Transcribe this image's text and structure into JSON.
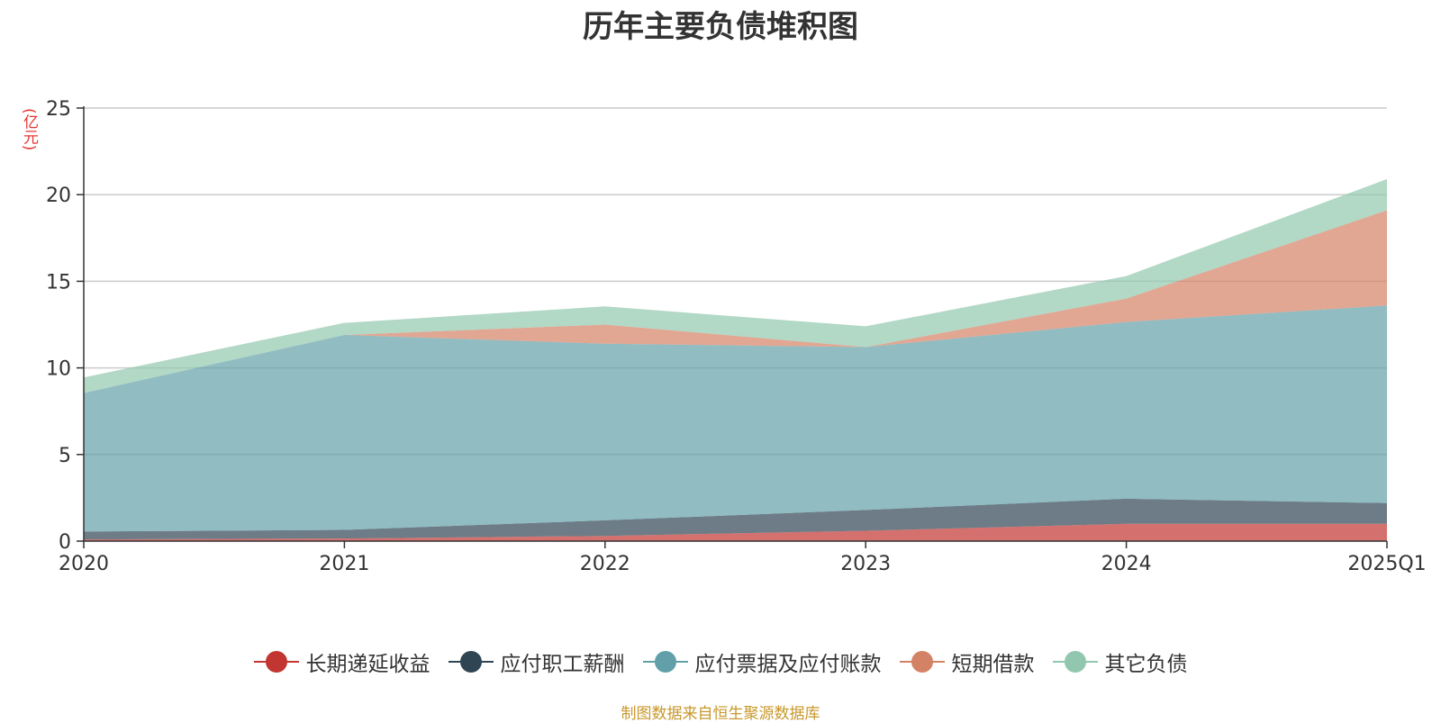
{
  "chart_data": {
    "type": "area",
    "stacked": true,
    "title": "历年主要负债堆积图",
    "unit_label": "(亿元)",
    "categories": [
      "2020",
      "2021",
      "2022",
      "2023",
      "2024",
      "2025Q1"
    ],
    "ylim": [
      0,
      25
    ],
    "yticks": [
      "0",
      "5",
      "10",
      "15",
      "20",
      "25"
    ],
    "grid": true,
    "legend_position": "bottom",
    "series": [
      {
        "name": "长期递延收益",
        "color": "#c23531",
        "values": [
          0.1,
          0.15,
          0.3,
          0.6,
          1.0,
          1.0
        ]
      },
      {
        "name": "应付职工薪酬",
        "color": "#2f4554",
        "values": [
          0.45,
          0.5,
          0.9,
          1.2,
          1.45,
          1.2
        ]
      },
      {
        "name": "应付票据及应付账款",
        "color": "#61a0a8",
        "values": [
          8.0,
          11.25,
          10.2,
          9.4,
          10.2,
          11.4
        ]
      },
      {
        "name": "短期借款",
        "color": "#d48265",
        "values": [
          0.0,
          0.0,
          1.1,
          0.0,
          1.35,
          5.5
        ]
      },
      {
        "name": "其它负债",
        "color": "#91c7ae",
        "values": [
          0.9,
          0.7,
          1.05,
          1.2,
          1.3,
          1.8
        ]
      }
    ]
  },
  "source_text": "制图数据来自恒生聚源数据库"
}
